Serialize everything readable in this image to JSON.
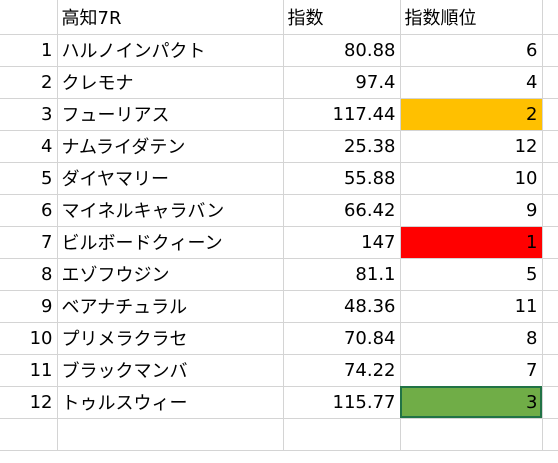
{
  "sheet": {
    "header": {
      "title": "高知7R",
      "col_index": "指数",
      "col_rank": "指数順位"
    },
    "rows": [
      {
        "num": "1",
        "name": "ハルノインパクト",
        "index": "80.88",
        "rank": "6",
        "highlight": ""
      },
      {
        "num": "2",
        "name": "クレモナ",
        "index": "97.4",
        "rank": "4",
        "highlight": ""
      },
      {
        "num": "3",
        "name": "フューリアス",
        "index": "117.44",
        "rank": "2",
        "highlight": "#ffc000"
      },
      {
        "num": "4",
        "name": "ナムライダテン",
        "index": "25.38",
        "rank": "12",
        "highlight": ""
      },
      {
        "num": "5",
        "name": "ダイヤマリー",
        "index": "55.88",
        "rank": "10",
        "highlight": ""
      },
      {
        "num": "6",
        "name": "マイネルキャラバン",
        "index": "66.42",
        "rank": "9",
        "highlight": ""
      },
      {
        "num": "7",
        "name": "ビルボードクィーン",
        "index": "147",
        "rank": "1",
        "highlight": "#ff0000"
      },
      {
        "num": "8",
        "name": "エゾフウジン",
        "index": "81.1",
        "rank": "5",
        "highlight": ""
      },
      {
        "num": "9",
        "name": "ベアナチュラル",
        "index": "48.36",
        "rank": "11",
        "highlight": ""
      },
      {
        "num": "10",
        "name": "プリメラクラセ",
        "index": "70.84",
        "rank": "8",
        "highlight": ""
      },
      {
        "num": "11",
        "name": "ブラックマンバ",
        "index": "74.22",
        "rank": "7",
        "highlight": ""
      },
      {
        "num": "12",
        "name": "トゥルスウィー",
        "index": "115.77",
        "rank": "3",
        "highlight": "#70ad47"
      }
    ]
  },
  "colors": {
    "gridline": "#d4d4d4",
    "rank_1": "#ff0000",
    "rank_2": "#ffc000",
    "rank_3": "#70ad47",
    "selection_border": "#217346"
  }
}
